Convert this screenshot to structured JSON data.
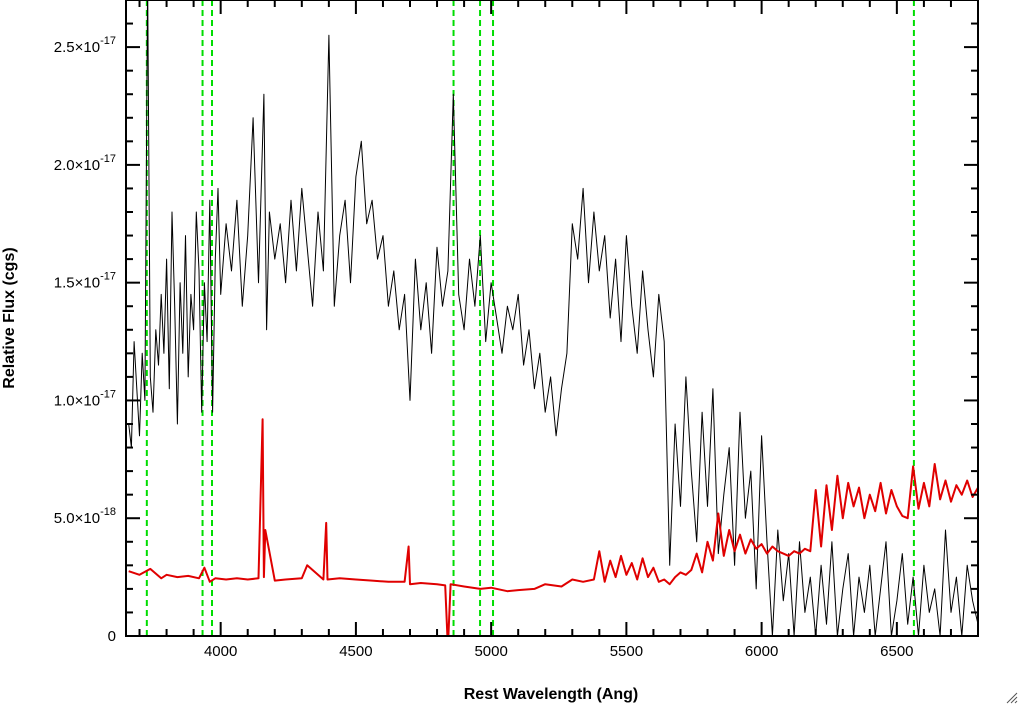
{
  "colors": {
    "background": "#ffffff",
    "axes": "#000000",
    "spectrum": "#000000",
    "model": "#e00000",
    "markers": "#00dd00"
  },
  "chart_data": {
    "type": "line",
    "title": "",
    "xlabel": "Rest Wavelength (Ang)",
    "ylabel": "Relative Flux (cgs)",
    "xlim": [
      3650,
      6800
    ],
    "ylim": [
      0,
      2.7e-17
    ],
    "x_ticks": [
      {
        "value": 4000,
        "label": "4000"
      },
      {
        "value": 4500,
        "label": "4500"
      },
      {
        "value": 5000,
        "label": "5000"
      },
      {
        "value": 5500,
        "label": "5500"
      },
      {
        "value": 6000,
        "label": "6000"
      },
      {
        "value": 6500,
        "label": "6500"
      }
    ],
    "y_ticks": [
      {
        "value": 0,
        "mantissa": "0",
        "exponent": ""
      },
      {
        "value": 5e-18,
        "mantissa": "5.0×10",
        "exponent": "-18"
      },
      {
        "value": 1e-17,
        "mantissa": "1.0×10",
        "exponent": "-17"
      },
      {
        "value": 1.5e-17,
        "mantissa": "1.5×10",
        "exponent": "-17"
      },
      {
        "value": 2e-17,
        "mantissa": "2.0×10",
        "exponent": "-17"
      },
      {
        "value": 2.5e-17,
        "mantissa": "2.5×10",
        "exponent": "-17"
      }
    ],
    "x_minor_step": 100,
    "y_minor_step": 1e-18,
    "grid": false,
    "legend": "none",
    "line_markers": [
      3727,
      3933,
      3968,
      4861,
      4959,
      5007,
      6563
    ],
    "series": [
      {
        "role": "observed spectrum",
        "color": "#000000",
        "x": [
          3660,
          3670,
          3680,
          3690,
          3700,
          3710,
          3720,
          3730,
          3740,
          3750,
          3760,
          3770,
          3780,
          3790,
          3800,
          3810,
          3820,
          3830,
          3840,
          3850,
          3860,
          3870,
          3880,
          3890,
          3900,
          3910,
          3920,
          3930,
          3940,
          3950,
          3960,
          3970,
          3980,
          3990,
          4000,
          4020,
          4040,
          4060,
          4080,
          4100,
          4120,
          4140,
          4160,
          4170,
          4180,
          4200,
          4220,
          4240,
          4260,
          4280,
          4300,
          4320,
          4340,
          4360,
          4380,
          4400,
          4420,
          4440,
          4460,
          4480,
          4500,
          4520,
          4540,
          4560,
          4580,
          4600,
          4620,
          4640,
          4660,
          4680,
          4700,
          4720,
          4740,
          4760,
          4780,
          4800,
          4820,
          4840,
          4860,
          4880,
          4900,
          4920,
          4940,
          4960,
          4980,
          5000,
          5020,
          5040,
          5060,
          5080,
          5100,
          5120,
          5140,
          5160,
          5180,
          5200,
          5220,
          5240,
          5260,
          5280,
          5300,
          5320,
          5340,
          5360,
          5380,
          5400,
          5420,
          5440,
          5460,
          5480,
          5500,
          5520,
          5540,
          5560,
          5580,
          5600,
          5620,
          5640,
          5660,
          5680,
          5700,
          5720,
          5740,
          5760,
          5780,
          5800,
          5820,
          5840,
          5860,
          5880,
          5900,
          5920,
          5940,
          5960,
          5980,
          6000,
          6020,
          6040,
          6060,
          6080,
          6100,
          6120,
          6140,
          6160,
          6180,
          6200,
          6220,
          6240,
          6260,
          6280,
          6300,
          6320,
          6340,
          6360,
          6380,
          6400,
          6420,
          6440,
          6460,
          6480,
          6500,
          6520,
          6540,
          6560,
          6580,
          6600,
          6620,
          6640,
          6660,
          6680,
          6700,
          6720,
          6740,
          6760,
          6780,
          6800
        ],
        "y": [
          9e-18,
          8e-18,
          1.25e-17,
          1.05e-17,
          8.5e-18,
          1.2e-17,
          1e-17,
          2.8e-17,
          1.1e-17,
          9.5e-18,
          1.3e-17,
          1.15e-17,
          1.45e-17,
          1.2e-17,
          1.6e-17,
          1.05e-17,
          1.8e-17,
          1.4e-17,
          9e-18,
          1.5e-17,
          1.2e-17,
          1.7e-17,
          1.1e-17,
          1.45e-17,
          1.3e-17,
          1.8e-17,
          1.55e-17,
          9.5e-18,
          1.5e-17,
          1.25e-17,
          1.85e-17,
          9.5e-18,
          1.6e-17,
          1.9e-17,
          1.45e-17,
          1.75e-17,
          1.55e-17,
          1.85e-17,
          1.4e-17,
          1.7e-17,
          2.2e-17,
          1.5e-17,
          2.3e-17,
          1.3e-17,
          1.8e-17,
          1.6e-17,
          1.75e-17,
          1.5e-17,
          1.85e-17,
          1.55e-17,
          1.9e-17,
          1.65e-17,
          1.4e-17,
          1.8e-17,
          1.55e-17,
          2.55e-17,
          1.4e-17,
          1.7e-17,
          1.85e-17,
          1.5e-17,
          1.95e-17,
          2.1e-17,
          1.75e-17,
          1.85e-17,
          1.6e-17,
          1.7e-17,
          1.4e-17,
          1.55e-17,
          1.3e-17,
          1.45e-17,
          1e-17,
          1.6e-17,
          1.3e-17,
          1.5e-17,
          1.2e-17,
          1.65e-17,
          1.4e-17,
          1.55e-17,
          2.3e-17,
          1.45e-17,
          1.3e-17,
          1.6e-17,
          1.4e-17,
          1.7e-17,
          1.25e-17,
          1.5e-17,
          1.35e-17,
          1.2e-17,
          1.4e-17,
          1.3e-17,
          1.45e-17,
          1.15e-17,
          1.3e-17,
          1.05e-17,
          1.2e-17,
          9.5e-18,
          1.1e-17,
          8.5e-18,
          1.05e-17,
          1.2e-17,
          1.75e-17,
          1.6e-17,
          1.9e-17,
          1.5e-17,
          1.8e-17,
          1.55e-17,
          1.7e-17,
          1.35e-17,
          1.6e-17,
          1.25e-17,
          1.7e-17,
          1.4e-17,
          1.2e-17,
          1.55e-17,
          1.3e-17,
          1.1e-17,
          1.45e-17,
          1.25e-17,
          3e-18,
          9e-18,
          5.5e-18,
          1.1e-17,
          7e-18,
          4e-18,
          9.5e-18,
          5.5e-18,
          1.05e-17,
          3.5e-18,
          6e-18,
          8e-18,
          3e-18,
          9.5e-18,
          5e-18,
          7e-18,
          2e-18,
          8.5e-18,
          4e-18,
          0.0,
          4.5e-18,
          1.5e-18,
          3.5e-18,
          0.0,
          4e-18,
          1e-18,
          2.5e-18,
          0.0,
          3e-18,
          5e-19,
          4e-18,
          0.0,
          2e-18,
          3.5e-18,
          0.0,
          2.5e-18,
          1e-18,
          3e-18,
          0.0,
          2e-18,
          4e-18,
          0.0,
          1.5e-18,
          3.5e-18,
          5e-19,
          2.5e-18,
          0.0,
          3e-18,
          1e-18,
          2e-18,
          0.0,
          4.5e-18,
          1e-18,
          2.5e-18,
          0.0,
          3e-18,
          1.5e-18,
          5e-19
        ]
      },
      {
        "role": "model",
        "color": "#e00000",
        "x": [
          3660,
          3700,
          3740,
          3780,
          3800,
          3840,
          3880,
          3920,
          3940,
          3960,
          3980,
          4020,
          4060,
          4100,
          4140,
          4155,
          4160,
          4165,
          4200,
          4240,
          4300,
          4320,
          4380,
          4390,
          4395,
          4440,
          4500,
          4560,
          4620,
          4680,
          4695,
          4700,
          4740,
          4800,
          4830,
          4840,
          4850,
          4900,
          4960,
          5000,
          5060,
          5100,
          5160,
          5200,
          5260,
          5300,
          5340,
          5380,
          5400,
          5420,
          5440,
          5460,
          5480,
          5500,
          5520,
          5540,
          5560,
          5580,
          5600,
          5620,
          5640,
          5660,
          5680,
          5700,
          5720,
          5740,
          5760,
          5780,
          5800,
          5820,
          5840,
          5860,
          5880,
          5900,
          5920,
          5940,
          5960,
          5980,
          6000,
          6020,
          6040,
          6060,
          6080,
          6100,
          6120,
          6140,
          6160,
          6180,
          6200,
          6220,
          6240,
          6260,
          6280,
          6300,
          6320,
          6340,
          6360,
          6380,
          6400,
          6420,
          6440,
          6460,
          6480,
          6500,
          6520,
          6540,
          6560,
          6580,
          6600,
          6620,
          6640,
          6660,
          6680,
          6700,
          6720,
          6740,
          6760,
          6780,
          6800
        ],
        "y": [
          2.75e-18,
          2.6e-18,
          2.85e-18,
          2.45e-18,
          2.6e-18,
          2.5e-18,
          2.55e-18,
          2.45e-18,
          2.9e-18,
          2.3e-18,
          2.45e-18,
          2.4e-18,
          2.45e-18,
          2.4e-18,
          2.45e-18,
          9.2e-18,
          2.5e-18,
          4.5e-18,
          2.35e-18,
          2.4e-18,
          2.45e-18,
          3e-18,
          2.4e-18,
          4.8e-18,
          2.4e-18,
          2.45e-18,
          2.4e-18,
          2.35e-18,
          2.3e-18,
          2.3e-18,
          3.8e-18,
          2.2e-18,
          2.25e-18,
          2.2e-18,
          2.15e-18,
          -5e-19,
          2.2e-18,
          2.1e-18,
          2e-18,
          2.05e-18,
          1.9e-18,
          1.95e-18,
          2e-18,
          2.2e-18,
          2.1e-18,
          2.4e-18,
          2.3e-18,
          2.4e-18,
          3.6e-18,
          2.3e-18,
          3.2e-18,
          2.5e-18,
          3.4e-18,
          2.6e-18,
          3.1e-18,
          2.4e-18,
          3.3e-18,
          2.5e-18,
          2.9e-18,
          2.3e-18,
          2.4e-18,
          2.2e-18,
          2.5e-18,
          2.7e-18,
          2.6e-18,
          2.8e-18,
          3.5e-18,
          2.7e-18,
          4e-18,
          3.2e-18,
          5.2e-18,
          3.4e-18,
          4.5e-18,
          3.6e-18,
          4.3e-18,
          3.5e-18,
          4.1e-18,
          3.7e-18,
          3.9e-18,
          3.5e-18,
          3.8e-18,
          3.6e-18,
          3.5e-18,
          3.4e-18,
          3.6e-18,
          3.5e-18,
          3.7e-18,
          3.6e-18,
          6.2e-18,
          3.8e-18,
          6.4e-18,
          4.5e-18,
          6.8e-18,
          5e-18,
          6.5e-18,
          5.5e-18,
          6.3e-18,
          5e-18,
          6e-18,
          5.3e-18,
          6.5e-18,
          5.2e-18,
          6.2e-18,
          5.5e-18,
          5.1e-18,
          5e-18,
          7.2e-18,
          5.4e-18,
          6.5e-18,
          5.5e-18,
          7.3e-18,
          5.8e-18,
          6.6e-18,
          5.7e-18,
          6.4e-18,
          6e-18,
          6.6e-18,
          5.9e-18,
          6.3e-18
        ]
      }
    ]
  }
}
